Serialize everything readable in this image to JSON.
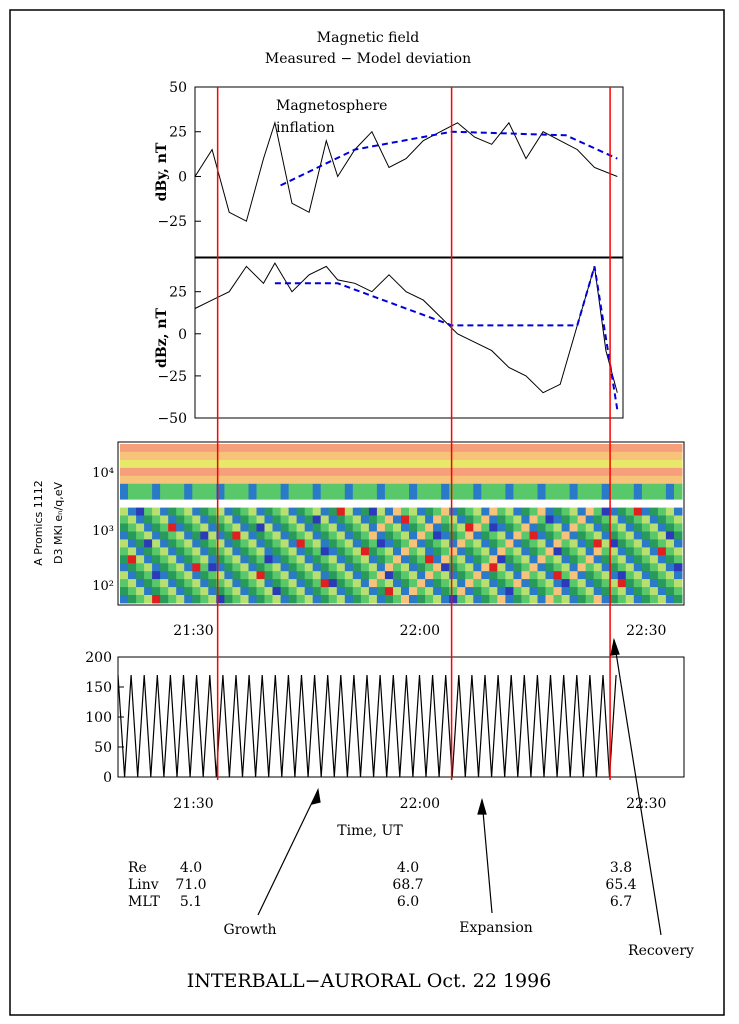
{
  "figure": {
    "title_line1": "Magnetic field",
    "title_line2": "Measured − Model deviation",
    "caption": "INTERBALL−AURORAL Oct. 22 1996",
    "annotation_inflation_1": "Magnetosphere",
    "annotation_inflation_2": "inflation",
    "xlabel": "Time, UT",
    "phases": [
      "Growth",
      "Expansion",
      "Recovery"
    ],
    "colors": {
      "marker_lines": "#ff0000",
      "model_trend": "#0000dd",
      "trace": "#000000"
    }
  },
  "chart_data": [
    {
      "type": "line",
      "name_panel": "dBy",
      "ylabel": "dBy, nT",
      "yticks": [
        "50",
        "25",
        "0",
        "−25"
      ],
      "ylim": [
        -45,
        50
      ],
      "xlim": [
        "21:20",
        "22:35"
      ],
      "series": [
        {
          "x": [
            "21:20",
            "21:23",
            "21:26",
            "21:29",
            "21:32",
            "21:34",
            "21:37",
            "21:40",
            "21:43",
            "21:45",
            "21:48",
            "21:51",
            "21:54",
            "21:57",
            "22:00",
            "22:03",
            "22:06",
            "22:09",
            "22:12",
            "22:15",
            "22:18",
            "22:21",
            "22:24",
            "22:27",
            "22:30",
            "22:34"
          ],
          "values": [
            0,
            15,
            -20,
            -25,
            10,
            30,
            -15,
            -20,
            20,
            0,
            15,
            25,
            5,
            10,
            20,
            25,
            30,
            22,
            18,
            30,
            10,
            25,
            20,
            15,
            5,
            0
          ]
        },
        {
          "x": [
            "21:35",
            "21:48",
            "22:05",
            "22:25",
            "22:34"
          ],
          "values": [
            -5,
            15,
            25,
            23,
            10
          ]
        }
      ]
    },
    {
      "type": "line",
      "name_panel": "dBz",
      "ylabel": "dBz, nT",
      "yticks": [
        "25",
        "0",
        "−25",
        "−50"
      ],
      "ylim": [
        -50,
        45
      ],
      "xlim": [
        "21:20",
        "22:35"
      ],
      "series": [
        {
          "x": [
            "21:20",
            "21:23",
            "21:26",
            "21:29",
            "21:32",
            "21:34",
            "21:37",
            "21:40",
            "21:43",
            "21:45",
            "21:48",
            "21:51",
            "21:54",
            "21:57",
            "22:00",
            "22:03",
            "22:06",
            "22:09",
            "22:12",
            "22:15",
            "22:18",
            "22:21",
            "22:24",
            "22:27",
            "22:30",
            "22:32",
            "22:34"
          ],
          "values": [
            15,
            20,
            25,
            40,
            30,
            42,
            25,
            35,
            40,
            32,
            30,
            25,
            35,
            25,
            20,
            10,
            0,
            -5,
            -10,
            -20,
            -25,
            -35,
            -30,
            5,
            40,
            -10,
            -35
          ]
        },
        {
          "x": [
            "21:34",
            "21:45",
            "22:05",
            "22:27",
            "22:30",
            "22:34"
          ],
          "values": [
            30,
            30,
            5,
            5,
            40,
            -45
          ]
        }
      ]
    },
    {
      "type": "heatmap",
      "ylabel_line1": "A Promics 1112",
      "ylabel_line2": "D3 MKI  eₙ/q,eV",
      "yticks": [
        "10⁴",
        "10³",
        "10²"
      ],
      "xticks": [
        "21:30",
        "22:00",
        "22:30"
      ],
      "xlim": [
        "21:20",
        "22:35"
      ]
    },
    {
      "type": "line",
      "yticks": [
        "200",
        "150",
        "100",
        "50",
        "0"
      ],
      "ylim": [
        0,
        200
      ],
      "xticks": [
        "21:30",
        "22:00",
        "22:30"
      ],
      "xlim": [
        "21:20",
        "22:35"
      ],
      "series": [
        {
          "x_start": "21:20",
          "x_end": "22:26",
          "min": 0,
          "max": 170,
          "cycles": 38
        }
      ]
    }
  ],
  "markers": [
    "21:34",
    "22:05",
    "22:26"
  ],
  "ephemeris": {
    "rows": [
      {
        "label": "Re",
        "values": [
          "4.0",
          "4.0",
          "3.8"
        ]
      },
      {
        "label": "Linv",
        "values": [
          "71.0",
          "68.7",
          "65.4"
        ]
      },
      {
        "label": "MLT",
        "values": [
          "5.1",
          "6.0",
          "6.7"
        ]
      }
    ]
  }
}
